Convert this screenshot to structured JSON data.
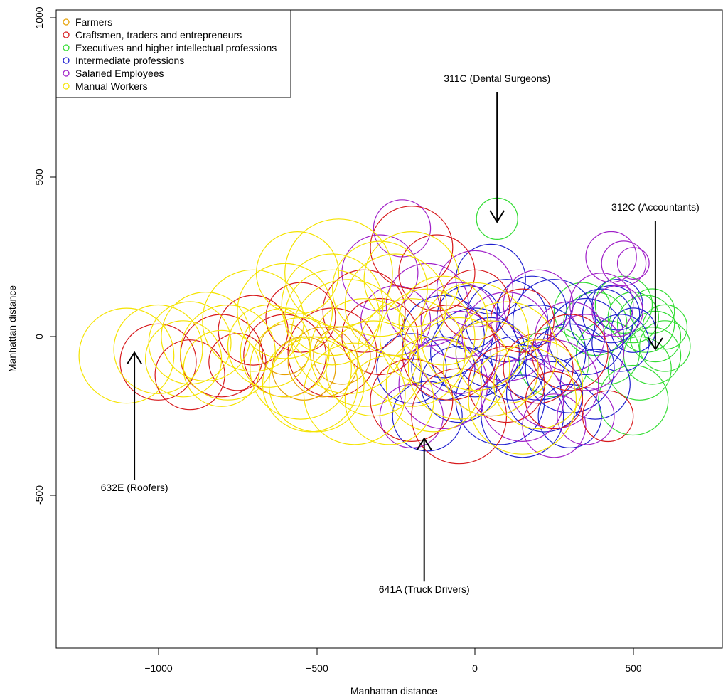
{
  "chart_data": {
    "type": "scatter",
    "title": "",
    "xlabel": "Manhattan distance",
    "ylabel": "Manhattan distance",
    "xlim": [
      -1320,
      790
    ],
    "ylim": [
      -980,
      1010
    ],
    "xticks": [
      -1000,
      -500,
      0,
      500
    ],
    "yticks": [
      -500,
      0,
      500,
      1000
    ],
    "xtick_labels": [
      "−1000",
      "−500",
      "0",
      "500"
    ],
    "ytick_labels": [
      "-500",
      "0",
      "500",
      "1000"
    ],
    "grid": false,
    "legend": {
      "placement": "top-left",
      "entries": [
        {
          "label": "Farmers",
          "color": "#e69f00"
        },
        {
          "label": "Craftsmen, traders and entrepreneurs",
          "color": "#d7191c"
        },
        {
          "label": "Executives and higher intellectual professions",
          "color": "#33dd33"
        },
        {
          "label": "Intermediate professions",
          "color": "#1f1fcf"
        },
        {
          "label": "Salaried Employees",
          "color": "#a020c8"
        },
        {
          "label": "Manual Workers",
          "color": "#f5e300"
        }
      ]
    },
    "marker": "open-circle",
    "series": [
      {
        "name": "Farmers",
        "color": "#e69f00",
        "points": [
          [
            -480,
            -80,
            110
          ],
          [
            -540,
            -100,
            100
          ],
          [
            -420,
            -60,
            90
          ],
          [
            -600,
            -40,
            80
          ]
        ]
      },
      {
        "name": "Craftsmen, traders and entrepreneurs",
        "color": "#d7191c",
        "points": [
          [
            -1000,
            -80,
            120
          ],
          [
            -800,
            -60,
            130
          ],
          [
            -700,
            20,
            110
          ],
          [
            -600,
            -60,
            130
          ],
          [
            -450,
            -50,
            140
          ],
          [
            -350,
            80,
            130
          ],
          [
            -200,
            280,
            130
          ],
          [
            -120,
            200,
            120
          ],
          [
            -80,
            -50,
            150
          ],
          [
            -200,
            -200,
            130
          ],
          [
            -50,
            -250,
            150
          ],
          [
            100,
            -150,
            120
          ],
          [
            200,
            -100,
            110
          ],
          [
            300,
            -50,
            120
          ],
          [
            420,
            -250,
            80
          ],
          [
            0,
            100,
            110
          ],
          [
            -300,
            0,
            120
          ],
          [
            -550,
            60,
            110
          ],
          [
            -900,
            -120,
            110
          ],
          [
            -750,
            -80,
            90
          ],
          [
            150,
            50,
            100
          ],
          [
            250,
            -200,
            90
          ]
        ]
      },
      {
        "name": "Executives and higher intellectual professions",
        "color": "#33dd33",
        "points": [
          [
            70,
            370,
            65
          ],
          [
            570,
            0,
            80
          ],
          [
            540,
            40,
            90
          ],
          [
            600,
            30,
            70
          ],
          [
            560,
            -60,
            90
          ],
          [
            520,
            -100,
            100
          ],
          [
            600,
            -30,
            80
          ],
          [
            470,
            100,
            90
          ],
          [
            500,
            -200,
            110
          ],
          [
            380,
            40,
            100
          ],
          [
            420,
            -50,
            100
          ],
          [
            340,
            80,
            90
          ],
          [
            250,
            -80,
            110
          ],
          [
            500,
            60,
            80
          ],
          [
            560,
            80,
            70
          ]
        ]
      },
      {
        "name": "Intermediate professions",
        "color": "#1f1fcf",
        "points": [
          [
            50,
            180,
            110
          ],
          [
            100,
            50,
            130
          ],
          [
            0,
            -50,
            140
          ],
          [
            -100,
            0,
            130
          ],
          [
            -50,
            -150,
            120
          ],
          [
            80,
            -200,
            140
          ],
          [
            200,
            -50,
            150
          ],
          [
            250,
            50,
            130
          ],
          [
            300,
            -100,
            140
          ],
          [
            350,
            0,
            120
          ],
          [
            400,
            50,
            100
          ],
          [
            450,
            100,
            80
          ],
          [
            500,
            20,
            70
          ],
          [
            150,
            -250,
            130
          ],
          [
            -150,
            -250,
            110
          ],
          [
            -100,
            -100,
            100
          ],
          [
            300,
            -250,
            100
          ],
          [
            50,
            -50,
            110
          ],
          [
            180,
            80,
            110
          ],
          [
            380,
            -150,
            110
          ],
          [
            460,
            -20,
            90
          ],
          [
            -20,
            60,
            100
          ],
          [
            120,
            -100,
            100
          ],
          [
            220,
            -180,
            120
          ],
          [
            -200,
            -100,
            110
          ],
          [
            430,
            70,
            90
          ]
        ]
      },
      {
        "name": "Salaried Employees",
        "color": "#a020c8",
        "points": [
          [
            -230,
            340,
            90
          ],
          [
            -150,
            100,
            130
          ],
          [
            -50,
            50,
            120
          ],
          [
            -100,
            -150,
            140
          ],
          [
            50,
            -100,
            150
          ],
          [
            150,
            -200,
            130
          ],
          [
            250,
            -150,
            140
          ],
          [
            350,
            -50,
            120
          ],
          [
            430,
            250,
            80
          ],
          [
            470,
            230,
            70
          ],
          [
            500,
            230,
            50
          ],
          [
            -200,
            -250,
            100
          ],
          [
            -300,
            200,
            120
          ],
          [
            0,
            150,
            120
          ],
          [
            200,
            100,
            110
          ],
          [
            300,
            0,
            110
          ],
          [
            400,
            100,
            100
          ],
          [
            450,
            80,
            80
          ],
          [
            100,
            0,
            140
          ],
          [
            -50,
            -50,
            130
          ],
          [
            250,
            -280,
            100
          ],
          [
            350,
            -250,
            90
          ],
          [
            -250,
            50,
            110
          ]
        ]
      },
      {
        "name": "Manual Workers",
        "color": "#f5e300",
        "points": [
          [
            -1100,
            -60,
            150
          ],
          [
            -1000,
            -40,
            140
          ],
          [
            -900,
            -20,
            130
          ],
          [
            -850,
            0,
            140
          ],
          [
            -780,
            -50,
            150
          ],
          [
            -700,
            50,
            160
          ],
          [
            -650,
            -30,
            130
          ],
          [
            -600,
            80,
            150
          ],
          [
            -550,
            -100,
            160
          ],
          [
            -500,
            -150,
            150
          ],
          [
            -450,
            100,
            160
          ],
          [
            -430,
            200,
            170
          ],
          [
            -400,
            0,
            180
          ],
          [
            -350,
            -50,
            170
          ],
          [
            -300,
            150,
            150
          ],
          [
            -250,
            100,
            160
          ],
          [
            -200,
            -50,
            170
          ],
          [
            -150,
            0,
            150
          ],
          [
            -100,
            50,
            140
          ],
          [
            -50,
            -100,
            160
          ],
          [
            0,
            0,
            170
          ],
          [
            50,
            -100,
            150
          ],
          [
            100,
            -50,
            160
          ],
          [
            150,
            -200,
            170
          ],
          [
            200,
            -150,
            140
          ],
          [
            -380,
            -180,
            160
          ],
          [
            -520,
            -150,
            150
          ],
          [
            -450,
            60,
            150
          ],
          [
            -320,
            -100,
            150
          ],
          [
            -200,
            180,
            150
          ],
          [
            -130,
            -150,
            150
          ],
          [
            -600,
            -50,
            140
          ],
          [
            -800,
            -100,
            120
          ],
          [
            -920,
            -70,
            120
          ],
          [
            -560,
            200,
            130
          ],
          [
            -270,
            -200,
            140
          ]
        ]
      }
    ],
    "annotations": [
      {
        "label": "311C (Dental Surgeons)",
        "text_x": 70,
        "text_y": 800,
        "head_x": 70,
        "head_y": 360
      },
      {
        "label": "312C (Accountants)",
        "text_x": 570,
        "text_y": 395,
        "head_x": 570,
        "head_y": -40
      },
      {
        "label": "632E (Roofers)",
        "text_x": -1075,
        "text_y": -485,
        "head_x": -1075,
        "head_y": -50
      },
      {
        "label": "641A (Truck Drivers)",
        "text_x": -160,
        "text_y": -805,
        "head_x": -160,
        "head_y": -320
      }
    ]
  }
}
